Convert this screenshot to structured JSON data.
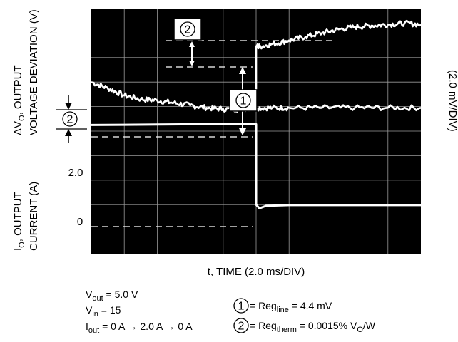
{
  "chart_data": {
    "type": "line",
    "xlabel": "t, TIME (2.0 ms/DIV)",
    "ylabel_top": [
      "ΔV",
      "O",
      ", OUTPUT",
      "VOLTAGE DEVIATION (V)"
    ],
    "ylabel_bottom": [
      "I",
      "O",
      ", OUTPUT",
      "CURRENT (A)"
    ],
    "right_label": "(2.0 mV/DIV)",
    "divisions": {
      "x": 10,
      "y": 10
    },
    "grid": true,
    "background": "#000000",
    "trace_color": "#ffffff",
    "y_tick_labels": [
      {
        "label": "2.0",
        "div": 5.25
      },
      {
        "label": "0",
        "div": 2.0
      }
    ],
    "series": [
      {
        "x_div": [
          0,
          0.5,
          1,
          1.5,
          2,
          2.5,
          3,
          3.5,
          4,
          4.5,
          5,
          5.5,
          6,
          7,
          8,
          9,
          10
        ],
        "y_div": [
          7.0,
          6.75,
          6.45,
          6.3,
          6.25,
          6.15,
          6.05,
          5.95,
          5.9,
          5.9,
          5.95,
          5.95,
          5.95,
          5.95,
          5.95,
          5.95,
          5.95
        ]
      },
      {
        "x_div": [
          5,
          5,
          5.1,
          5.5,
          6,
          6.5,
          7,
          7.5,
          8,
          8.5,
          9,
          9.5,
          10
        ],
        "y_div": [
          5.95,
          8.45,
          8.45,
          8.55,
          8.7,
          8.85,
          9.0,
          9.15,
          9.25,
          9.3,
          9.35,
          9.4,
          9.35
        ]
      },
      {
        "x_div": [
          0,
          1,
          2,
          3,
          4,
          5,
          5,
          5.1,
          5.3,
          6,
          7,
          8,
          9,
          10
        ],
        "y_div": [
          5.25,
          5.26,
          5.27,
          5.28,
          5.28,
          5.28,
          2.0,
          1.85,
          1.95,
          1.98,
          1.98,
          1.98,
          1.98,
          1.98
        ]
      }
    ],
    "annotations": {
      "circle_1": "1",
      "circle_2": "2",
      "box_1": "1",
      "box_2": "2"
    }
  },
  "notes": {
    "left": [
      {
        "main": "V",
        "sub": "out",
        "rest": " = 5.0 V"
      },
      {
        "main": "V",
        "sub": "in",
        "rest": " = 15"
      },
      {
        "main": "I",
        "sub": "out",
        "rest": " = 0 A → 2.0 A → 0 A"
      }
    ],
    "right": [
      {
        "num": "1",
        "pre": " = Reg",
        "sub": "line",
        "post": " = 4.4 mV"
      },
      {
        "num": "2",
        "pre": " = Reg",
        "sub": "therm",
        "post": " = 0.0015% V",
        "sub2": "O",
        "post2": "/W"
      }
    ]
  }
}
